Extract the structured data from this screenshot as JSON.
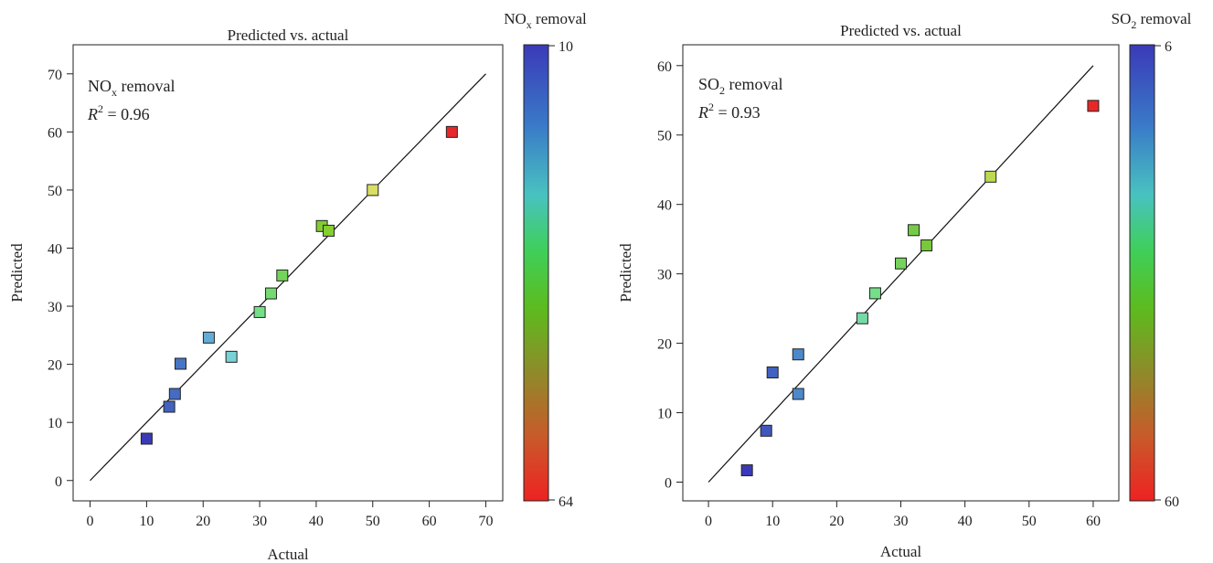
{
  "chart_data": [
    {
      "type": "scatter",
      "title": "Predicted vs. actual",
      "xlabel": "Actual",
      "ylabel": "Predicted",
      "xlim": [
        -3,
        73
      ],
      "ylim": [
        -3.5,
        75
      ],
      "xticks": [
        0,
        10,
        20,
        30,
        40,
        50,
        60,
        70
      ],
      "yticks": [
        0,
        10,
        20,
        30,
        40,
        50,
        60,
        70
      ],
      "reference_line": {
        "x": [
          0,
          70
        ],
        "y": [
          0,
          70
        ]
      },
      "annotation": {
        "name_base": "NO",
        "name_sub": "x",
        "name_rest": " removal",
        "r2": "0.96"
      },
      "colorbar": {
        "label_base": "NO",
        "label_sub": "x",
        "label_rest": " removal",
        "min_label": "10",
        "max_label": "64",
        "min": 10,
        "max": 64
      },
      "points": [
        {
          "x": 10,
          "y": 7.2
        },
        {
          "x": 14,
          "y": 12.7
        },
        {
          "x": 15,
          "y": 14.9
        },
        {
          "x": 16,
          "y": 20.1
        },
        {
          "x": 21,
          "y": 24.6
        },
        {
          "x": 25,
          "y": 21.3
        },
        {
          "x": 30,
          "y": 29.0
        },
        {
          "x": 32,
          "y": 32.2
        },
        {
          "x": 34,
          "y": 35.3
        },
        {
          "x": 41,
          "y": 43.8
        },
        {
          "x": 42.2,
          "y": 43.0
        },
        {
          "x": 50,
          "y": 50.0
        },
        {
          "x": 64,
          "y": 60.0
        }
      ]
    },
    {
      "type": "scatter",
      "title": "Predicted vs. actual",
      "xlabel": "Actual",
      "ylabel": "Predicted",
      "xlim": [
        -4,
        64
      ],
      "ylim": [
        -2.7,
        63
      ],
      "xticks": [
        0,
        10,
        20,
        30,
        40,
        50,
        60
      ],
      "yticks": [
        0,
        10,
        20,
        30,
        40,
        50,
        60
      ],
      "reference_line": {
        "x": [
          0,
          60
        ],
        "y": [
          0,
          60
        ]
      },
      "annotation": {
        "name_base": "SO",
        "name_sub": "2",
        "name_rest": " removal",
        "r2": "0.93"
      },
      "colorbar": {
        "label_base": "SO",
        "label_sub": "2",
        "label_rest": " removal",
        "min_label": "6",
        "max_label": "60",
        "min": 6,
        "max": 60
      },
      "points": [
        {
          "x": 6,
          "y": 1.7
        },
        {
          "x": 9,
          "y": 7.4
        },
        {
          "x": 10,
          "y": 15.8
        },
        {
          "x": 14,
          "y": 12.7
        },
        {
          "x": 14,
          "y": 18.4
        },
        {
          "x": 24,
          "y": 23.6
        },
        {
          "x": 26,
          "y": 27.2
        },
        {
          "x": 30,
          "y": 31.5
        },
        {
          "x": 32,
          "y": 36.3
        },
        {
          "x": 34,
          "y": 34.1
        },
        {
          "x": 44,
          "y": 44.0
        },
        {
          "x": 60,
          "y": 54.2
        }
      ]
    }
  ]
}
